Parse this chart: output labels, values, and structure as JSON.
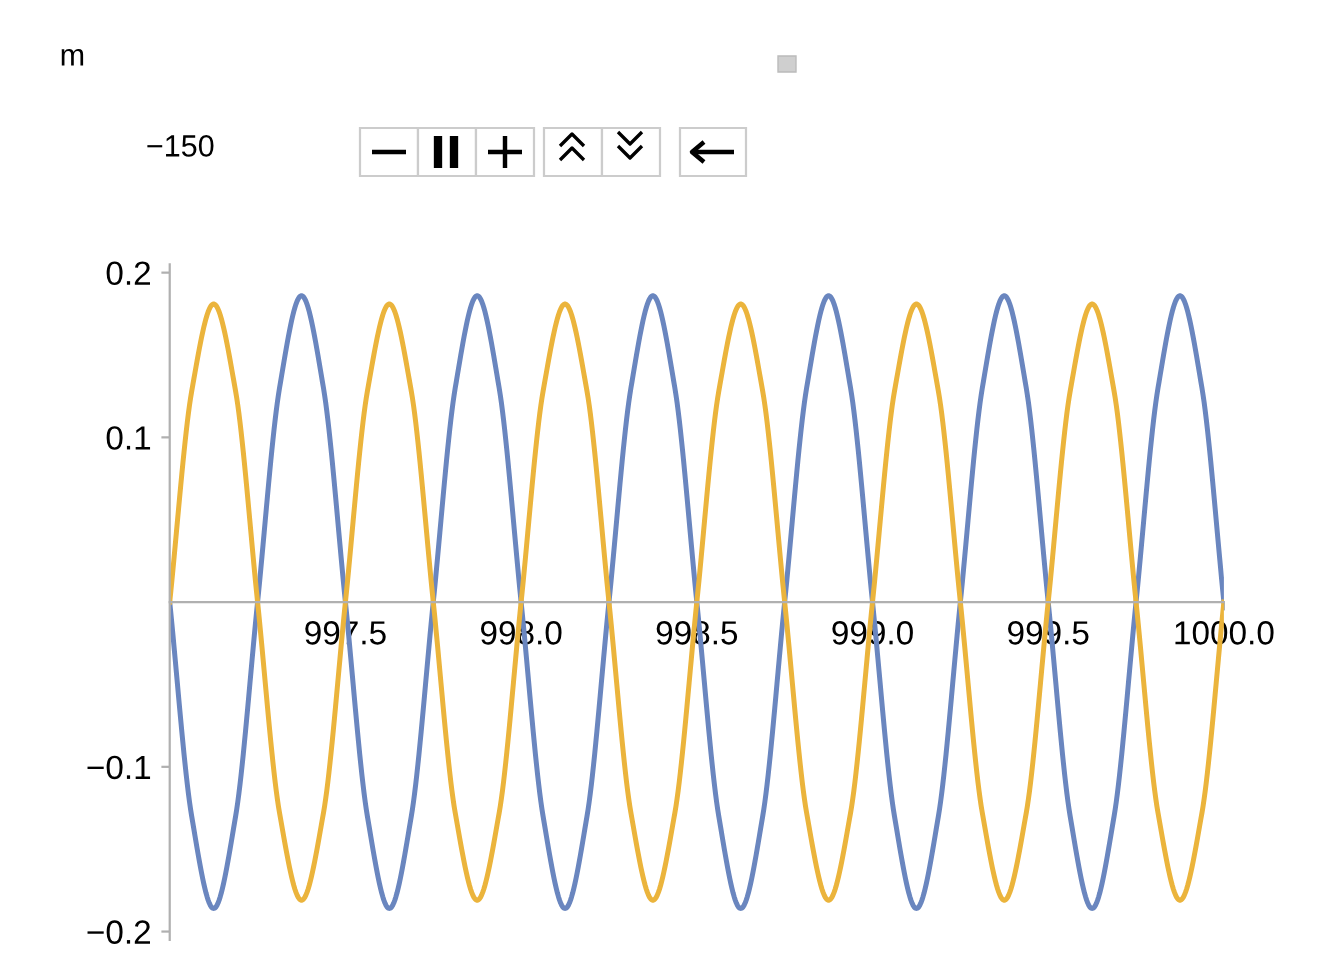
{
  "chart_data": {
    "type": "line",
    "annotations": [
      "m",
      "−150"
    ],
    "x": [
      997.0,
      997.0625,
      997.125,
      997.1875,
      997.25,
      997.3125,
      997.375,
      997.4375,
      997.5,
      997.5625,
      997.625,
      997.6875,
      997.75,
      997.8125,
      997.875,
      997.9375,
      998.0,
      998.0625,
      998.125,
      998.1875,
      998.25,
      998.3125,
      998.375,
      998.4375,
      998.5,
      998.5625,
      998.625,
      998.6875,
      998.75,
      998.8125,
      998.875,
      998.9375,
      999.0,
      999.0625,
      999.125,
      999.1875,
      999.25,
      999.3125,
      999.375,
      999.4375,
      999.5,
      999.5625,
      999.625,
      999.6875,
      999.75,
      999.8125,
      999.875,
      999.9375,
      1000.0
    ],
    "series": [
      {
        "color": "#6a86bf",
        "values": [
          0,
          -0.13,
          -0.186,
          -0.13,
          0,
          0.13,
          0.186,
          0.13,
          0,
          -0.13,
          -0.186,
          -0.13,
          0,
          0.13,
          0.186,
          0.13,
          0,
          -0.13,
          -0.186,
          -0.13,
          0,
          0.13,
          0.186,
          0.13,
          0,
          -0.13,
          -0.186,
          -0.13,
          0,
          0.13,
          0.186,
          0.13,
          0,
          -0.13,
          -0.186,
          -0.13,
          0,
          0.13,
          0.186,
          0.13,
          0,
          -0.13,
          -0.186,
          -0.13,
          0,
          0.13,
          0.186,
          0.13,
          0
        ]
      },
      {
        "color": "#ebb43c",
        "values": [
          0,
          0.128,
          0.181,
          0.128,
          0,
          -0.128,
          -0.181,
          -0.128,
          0,
          0.128,
          0.181,
          0.128,
          0,
          -0.128,
          -0.181,
          -0.128,
          0,
          0.128,
          0.181,
          0.128,
          0,
          -0.128,
          -0.181,
          -0.128,
          0,
          0.128,
          0.181,
          0.128,
          0,
          -0.128,
          -0.181,
          -0.128,
          0,
          0.128,
          0.181,
          0.128,
          0,
          -0.128,
          -0.181,
          -0.128,
          0,
          0.128,
          0.181,
          0.128,
          0,
          -0.128,
          -0.181,
          -0.128,
          0
        ]
      }
    ],
    "xlim": [
      997,
      1000
    ],
    "ylim": [
      -0.205,
      0.205
    ],
    "xticks": [
      {
        "value": 997.5,
        "label": "997.5"
      },
      {
        "value": 998.0,
        "label": "998.0"
      },
      {
        "value": 998.5,
        "label": "998.5"
      },
      {
        "value": 999.0,
        "label": "999.0"
      },
      {
        "value": 999.5,
        "label": "999.5"
      },
      {
        "value": 1000.0,
        "label": "1000.0"
      }
    ],
    "yticks": [
      {
        "value": -0.2,
        "label": "−0.2"
      },
      {
        "value": -0.1,
        "label": "−0.1"
      },
      0.1,
      0.2
    ],
    "grid": false,
    "legend": false
  }
}
